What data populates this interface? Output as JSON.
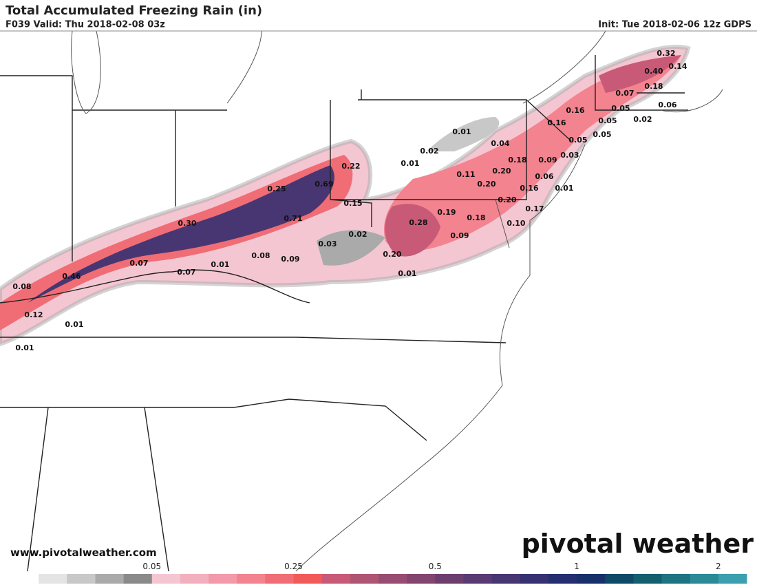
{
  "header": {
    "title": "Total Accumulated Freezing Rain (in)",
    "valid": "F039 Valid: Thu 2018-02-08 03z",
    "init": "Init: Tue 2018-02-06 12z GDPS"
  },
  "map_labels": [
    "0.32",
    "0.40",
    "0.14",
    "0.18",
    "0.07",
    "0.05",
    "0.06",
    "0.16",
    "0.16",
    "0.05",
    "0.02",
    "0.05",
    "0.05",
    "0.01",
    "0.04",
    "0.02",
    "0.01",
    "0.22",
    "0.18",
    "0.09",
    "0.03",
    "0.20",
    "0.11",
    "0.20",
    "0.06",
    "0.16",
    "0.01",
    "0.25",
    "0.69",
    "0.15",
    "0.20",
    "0.17",
    "0.19",
    "0.18",
    "0.10",
    "0.28",
    "0.30",
    "0.71",
    "0.02",
    "0.09",
    "0.03",
    "0.20",
    "0.08",
    "0.09",
    "0.07",
    "0.01",
    "0.01",
    "0.07",
    "0.46",
    "0.08",
    "0.12",
    "0.01",
    "0.01"
  ],
  "watermark": {
    "url": "www.pivotalweather.com",
    "logo": "pivotal weather"
  },
  "colorbar": {
    "colors": [
      "#ffffff",
      "#e4e4e4",
      "#c8c8c8",
      "#aaaaaa",
      "#8a8a8a",
      "#f4c6d2",
      "#f2b0bf",
      "#f29aaa",
      "#f2838f",
      "#f06d75",
      "#f25a5a",
      "#c85a78",
      "#b05474",
      "#984c72",
      "#824570",
      "#6c3e70",
      "#5a3a72",
      "#483672",
      "#363272",
      "#242e70",
      "#18306a",
      "#0e4a66",
      "#12606e",
      "#1e7480",
      "#2a8a96",
      "#3aa0b0"
    ],
    "ticks": [
      "0.05",
      "0.25",
      "0.5",
      "1",
      "2"
    ]
  }
}
